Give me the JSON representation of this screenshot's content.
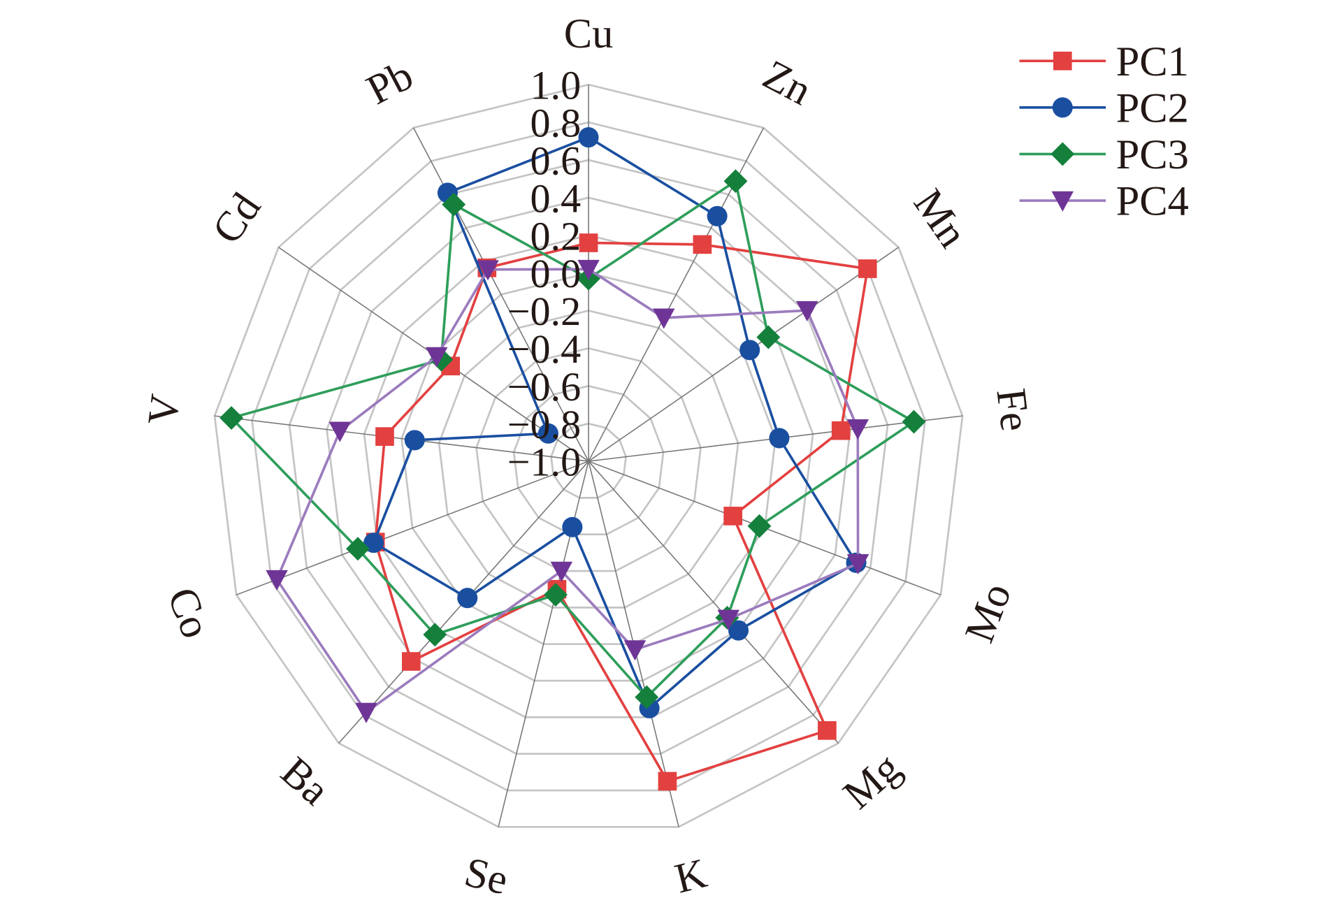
{
  "chart_data": {
    "type": "radar",
    "title": "",
    "axes": [
      "Cu",
      "Zn",
      "Mn",
      "Fe",
      "Mo",
      "Mg",
      "K",
      "Se",
      "Ba",
      "Co",
      "V",
      "Cd",
      "Pb"
    ],
    "rlim": [
      -1.0,
      1.0
    ],
    "ticks": [
      "1.0",
      "0.8",
      "0.6",
      "0.4",
      "0.2",
      "0.0",
      "−0.2",
      "−0.4",
      "−0.6",
      "−0.8",
      "−1.0"
    ],
    "tick_values": [
      1.0,
      0.8,
      0.6,
      0.4,
      0.2,
      0.0,
      -0.2,
      -0.4,
      -0.6,
      -0.8,
      -1.0
    ],
    "grid": true,
    "legend_position": "top-right",
    "series": [
      {
        "name": "PC1",
        "color": "#e34040",
        "marker": "square",
        "values": [
          0.16,
          0.3,
          0.8,
          0.35,
          -0.18,
          0.91,
          0.75,
          -0.3,
          0.42,
          0.21,
          0.09,
          -0.11,
          0.16
        ]
      },
      {
        "name": "PC2",
        "color": "#1a4fa0",
        "marker": "circle",
        "values": [
          0.72,
          0.47,
          0.04,
          0.02,
          0.52,
          0.2,
          0.35,
          -0.64,
          -0.03,
          0.22,
          -0.07,
          -0.74,
          0.61
        ]
      },
      {
        "name": "PC3",
        "color": "#2e9e5b",
        "marker_color": "#14803c",
        "marker": "diamond",
        "values": [
          -0.03,
          0.68,
          0.16,
          0.74,
          -0.03,
          0.11,
          0.29,
          -0.27,
          0.23,
          0.31,
          0.91,
          -0.05,
          0.54
        ]
      },
      {
        "name": "PC4",
        "color": "#9b7bbd",
        "marker_color": "#6f3596",
        "marker": "triangle-down",
        "values": [
          0.02,
          -0.14,
          0.41,
          0.44,
          0.53,
          0.12,
          0.03,
          -0.4,
          0.78,
          0.77,
          0.33,
          -0.02,
          0.15
        ]
      }
    ]
  }
}
